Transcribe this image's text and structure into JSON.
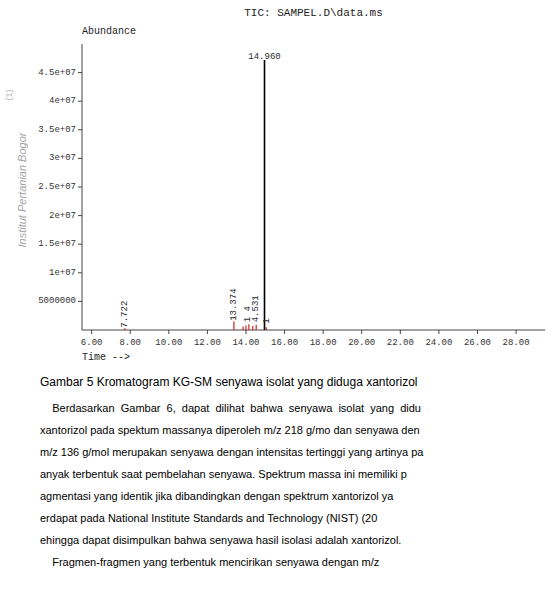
{
  "chart_data": {
    "type": "stem",
    "title": "TIC: SAMPEL.D\\data.ms",
    "xlabel": "Time -->",
    "ylabel": "Abundance",
    "xlim": [
      5.5,
      29.5
    ],
    "ylim": [
      0,
      50000000
    ],
    "xticks": [
      {
        "value": 6.0,
        "label": "6.00"
      },
      {
        "value": 8.0,
        "label": "8.00"
      },
      {
        "value": 10.0,
        "label": "10.00"
      },
      {
        "value": 12.0,
        "label": "12.00"
      },
      {
        "value": 14.0,
        "label": "14.00"
      },
      {
        "value": 16.0,
        "label": "16.00"
      },
      {
        "value": 18.0,
        "label": "18.00"
      },
      {
        "value": 20.0,
        "label": "20.00"
      },
      {
        "value": 22.0,
        "label": "22.00"
      },
      {
        "value": 24.0,
        "label": "24.00"
      },
      {
        "value": 26.0,
        "label": "26.00"
      },
      {
        "value": 28.0,
        "label": "28.00"
      }
    ],
    "yticks": [
      5000000,
      {
        "value": 10000000,
        "label": "1e+07"
      },
      {
        "value": 15000000,
        "label": "1.5e+07"
      },
      {
        "value": 20000000,
        "label": "2e+07"
      },
      {
        "value": 25000000,
        "label": "2.5e+07"
      },
      {
        "value": 30000000,
        "label": "3e+07"
      },
      {
        "value": 35000000,
        "label": "3.5e+07"
      },
      {
        "value": 40000000,
        "label": "4e+07"
      },
      {
        "value": 45000000,
        "label": "4.5e+07"
      }
    ],
    "grid": false,
    "series": [
      {
        "color": "#cc2222",
        "x": [
          7.722,
          13.374,
          13.85,
          14.0,
          14.15,
          14.35,
          14.53,
          15.05
        ],
        "values": [
          300000,
          1500000,
          600000,
          800000,
          1000000,
          700000,
          900000,
          500000
        ]
      },
      {
        "color": "#000000",
        "x": [
          14.96
        ],
        "values": [
          47200000
        ]
      }
    ],
    "annotations": [
      {
        "text": "14.960",
        "x": 14.96,
        "y": 47400000
      },
      {
        "text": "7.722",
        "x": 7.722,
        "y": 400000
      },
      {
        "text": "13.374",
        "x": 13.374,
        "y": 1600000
      },
      {
        "text": "1 4",
        "x": 14.08,
        "y": 1350000
      },
      {
        "text": "4.531",
        "x": 14.53,
        "y": 1350000
      },
      {
        "text": "1",
        "x": 15.1,
        "y": 1100000
      }
    ],
    "watermark": [
      "Institut Pertanian Bogor",
      "(1)"
    ],
    "caption": "Gambar 5 Kromatogram KG-SM senyawa isolat yang diduga xantorizol",
    "body_text": [
      "    Berdasarkan  Gambar  6,  dapat  dilihat  bahwa  senyawa  isolat  yang  didu",
      "xantorizol pada spektum massanya diperoleh m/z 218 g/mo dan senyawa den",
      "m/z 136 g/mol merupakan senyawa dengan intensitas tertinggi yang artinya pa",
      "anyak terbentuk saat pembelahan senyawa. Spektrum massa ini memiliki p",
      "agmentasi yang identik jika dibandingkan dengan spektrum xantorizol ya",
      "erdapat pada National Institute Standards and Technology (NIST) (20",
      "ehingga dapat disimpulkan bahwa senyawa hasil isolasi adalah xantorizol.",
      "    Fragmen-fragmen yang terbentuk mencirikan senyawa dengan m/z"
    ]
  }
}
